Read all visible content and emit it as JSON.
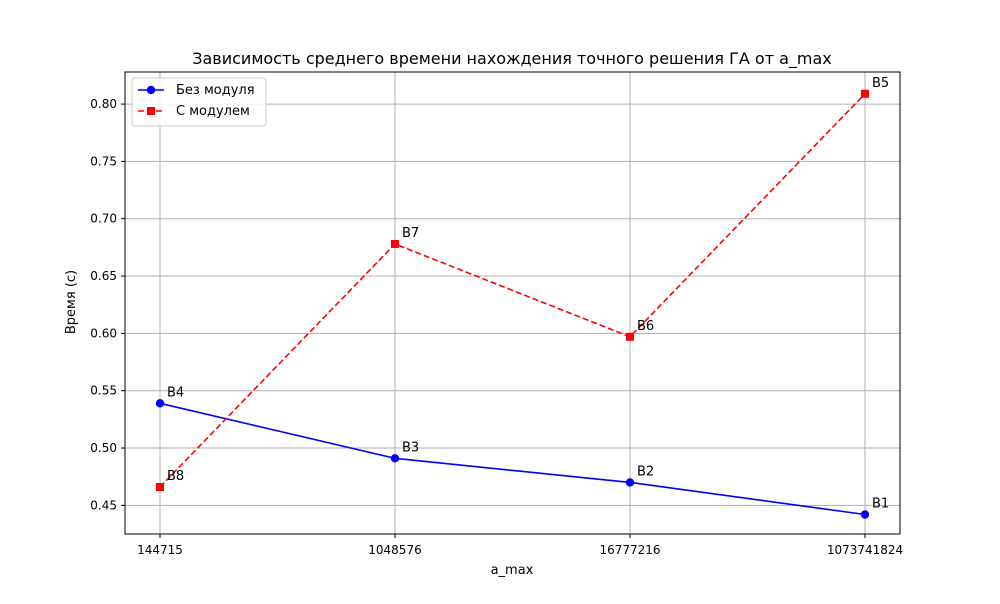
{
  "chart_data": {
    "type": "line",
    "title": "Зависимость среднего времени нахождения точного решения ГА от a_max",
    "xlabel": "a_max",
    "ylabel": "Время (с)",
    "categories": [
      "144715",
      "1048576",
      "16777216",
      "1073741824"
    ],
    "ylim": [
      0.425,
      0.828
    ],
    "yticks": [
      0.45,
      0.5,
      0.55,
      0.6,
      0.65,
      0.7,
      0.75,
      0.8
    ],
    "ytick_labels": [
      "0.45",
      "0.50",
      "0.55",
      "0.60",
      "0.65",
      "0.70",
      "0.75",
      "0.80"
    ],
    "grid": true,
    "legend_position": "upper-left",
    "series": [
      {
        "name": "Без модуля",
        "values": [
          0.539,
          0.491,
          0.47,
          0.442
        ],
        "point_labels": [
          "B4",
          "B3",
          "B2",
          "B1"
        ],
        "color": "#0000ff",
        "line_style": "solid",
        "marker": "circle"
      },
      {
        "name": "С модулем",
        "values": [
          0.466,
          0.678,
          0.597,
          0.809
        ],
        "point_labels": [
          "B8",
          "B7",
          "B6",
          "B5"
        ],
        "color": "#ff0000",
        "line_style": "dashed",
        "marker": "square"
      }
    ]
  }
}
